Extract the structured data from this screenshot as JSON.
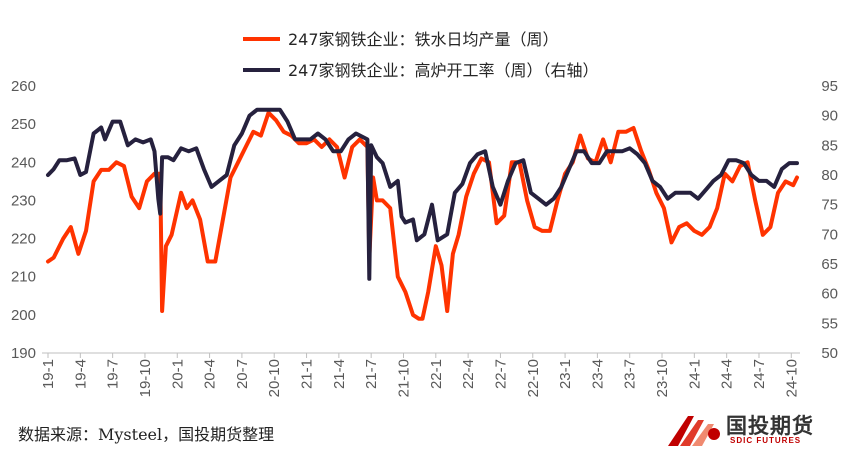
{
  "chart_data": {
    "type": "line",
    "title": "",
    "categories": [
      "19-1",
      "19-4",
      "19-7",
      "19-10",
      "20-1",
      "20-4",
      "20-7",
      "20-10",
      "21-1",
      "21-4",
      "21-7",
      "21-10",
      "22-1",
      "22-4",
      "22-7",
      "22-10",
      "23-1",
      "23-4",
      "23-7",
      "23-10",
      "24-1",
      "24-4",
      "24-7",
      "24-10"
    ],
    "y_left": {
      "min": 190,
      "max": 260,
      "step": 10,
      "ticks": [
        "190",
        "200",
        "210",
        "220",
        "230",
        "240",
        "250",
        "260"
      ]
    },
    "y_right": {
      "min": 50,
      "max": 95,
      "step": 5,
      "ticks": [
        "50",
        "55",
        "60",
        "65",
        "70",
        "75",
        "80",
        "85",
        "90",
        "95"
      ]
    },
    "grid": false,
    "legend_position": "top",
    "series": [
      {
        "name": "247家钢铁企业：铁水日均产量（周）",
        "axis": "left",
        "color": "#ff3300",
        "points": [
          [
            0,
            214
          ],
          [
            0.3,
            215
          ],
          [
            0.8,
            220
          ],
          [
            1.2,
            223
          ],
          [
            1.6,
            216
          ],
          [
            2.0,
            222
          ],
          [
            2.4,
            235
          ],
          [
            2.8,
            238
          ],
          [
            3.2,
            238
          ],
          [
            3.6,
            240
          ],
          [
            4.0,
            239
          ],
          [
            4.4,
            231
          ],
          [
            4.8,
            228
          ],
          [
            5.2,
            235
          ],
          [
            5.6,
            237
          ],
          [
            5.9,
            237
          ],
          [
            6.0,
            201
          ],
          [
            6.2,
            218
          ],
          [
            6.5,
            221
          ],
          [
            7.0,
            232
          ],
          [
            7.3,
            228
          ],
          [
            7.6,
            230
          ],
          [
            8.0,
            225
          ],
          [
            8.4,
            214
          ],
          [
            8.8,
            214
          ],
          [
            9.2,
            225
          ],
          [
            9.6,
            236
          ],
          [
            10.0,
            240
          ],
          [
            10.4,
            244
          ],
          [
            10.8,
            248
          ],
          [
            11.2,
            247
          ],
          [
            11.6,
            253
          ],
          [
            12.0,
            251
          ],
          [
            12.4,
            248
          ],
          [
            12.8,
            247
          ],
          [
            13.2,
            245
          ],
          [
            13.6,
            245
          ],
          [
            14.0,
            246
          ],
          [
            14.4,
            244
          ],
          [
            14.8,
            246
          ],
          [
            15.2,
            244
          ],
          [
            15.6,
            236
          ],
          [
            16.0,
            244
          ],
          [
            16.4,
            246
          ],
          [
            16.8,
            244
          ],
          [
            16.9,
            215
          ],
          [
            17.1,
            236
          ],
          [
            17.3,
            230
          ],
          [
            17.6,
            230
          ],
          [
            18.0,
            228
          ],
          [
            18.4,
            210
          ],
          [
            18.8,
            206
          ],
          [
            19.2,
            200
          ],
          [
            19.5,
            199
          ],
          [
            19.7,
            199
          ],
          [
            20.0,
            206
          ],
          [
            20.4,
            218
          ],
          [
            20.7,
            213
          ],
          [
            21.0,
            201
          ],
          [
            21.3,
            216
          ],
          [
            21.6,
            221
          ],
          [
            22.0,
            231
          ],
          [
            22.4,
            237
          ],
          [
            22.8,
            241
          ],
          [
            23.2,
            240
          ],
          [
            23.6,
            224
          ],
          [
            24.0,
            226
          ],
          [
            24.4,
            240
          ],
          [
            24.8,
            240
          ],
          [
            25.2,
            230
          ],
          [
            25.6,
            223
          ],
          [
            26.0,
            222
          ],
          [
            26.4,
            222
          ],
          [
            26.8,
            230
          ],
          [
            27.2,
            237
          ],
          [
            27.6,
            240
          ],
          [
            28.0,
            247
          ],
          [
            28.4,
            241
          ],
          [
            28.8,
            240
          ],
          [
            29.2,
            246
          ],
          [
            29.6,
            240
          ],
          [
            30.0,
            248
          ],
          [
            30.4,
            248
          ],
          [
            30.8,
            249
          ],
          [
            31.2,
            243
          ],
          [
            31.6,
            238
          ],
          [
            32.0,
            232
          ],
          [
            32.4,
            228
          ],
          [
            32.8,
            219
          ],
          [
            33.2,
            223
          ],
          [
            33.6,
            224
          ],
          [
            34.0,
            222
          ],
          [
            34.4,
            221
          ],
          [
            34.8,
            223
          ],
          [
            35.2,
            228
          ],
          [
            35.6,
            237
          ],
          [
            36.0,
            235
          ],
          [
            36.4,
            239
          ],
          [
            36.8,
            240
          ],
          [
            37.2,
            230
          ],
          [
            37.6,
            221
          ],
          [
            38.0,
            223
          ],
          [
            38.4,
            232
          ],
          [
            38.8,
            235
          ],
          [
            39.2,
            234
          ],
          [
            39.4,
            236
          ]
        ]
      },
      {
        "name": "247家钢铁企业：高炉开工率（周）（右轴）",
        "axis": "right",
        "color": "#26213e",
        "points": [
          [
            0,
            80
          ],
          [
            0.3,
            81
          ],
          [
            0.6,
            82.5
          ],
          [
            1.0,
            82.5
          ],
          [
            1.4,
            82.8
          ],
          [
            1.7,
            80
          ],
          [
            2.0,
            80.5
          ],
          [
            2.4,
            87
          ],
          [
            2.8,
            88
          ],
          [
            3.0,
            86
          ],
          [
            3.4,
            89
          ],
          [
            3.8,
            89
          ],
          [
            4.2,
            85
          ],
          [
            4.6,
            86
          ],
          [
            5.0,
            85.5
          ],
          [
            5.4,
            86
          ],
          [
            5.6,
            84
          ],
          [
            5.8,
            76
          ],
          [
            5.9,
            73.5
          ],
          [
            6.0,
            83
          ],
          [
            6.3,
            83
          ],
          [
            6.6,
            82.5
          ],
          [
            7.0,
            84.5
          ],
          [
            7.4,
            84
          ],
          [
            7.8,
            84.5
          ],
          [
            8.2,
            81
          ],
          [
            8.6,
            78
          ],
          [
            9.0,
            79
          ],
          [
            9.4,
            80
          ],
          [
            9.8,
            85
          ],
          [
            10.2,
            87
          ],
          [
            10.6,
            90
          ],
          [
            11.0,
            91
          ],
          [
            11.4,
            91
          ],
          [
            11.8,
            91
          ],
          [
            12.2,
            91
          ],
          [
            12.6,
            89
          ],
          [
            13.0,
            86
          ],
          [
            13.4,
            86
          ],
          [
            13.8,
            86
          ],
          [
            14.2,
            87
          ],
          [
            14.6,
            86
          ],
          [
            15.0,
            84
          ],
          [
            15.4,
            84
          ],
          [
            15.8,
            86
          ],
          [
            16.2,
            87
          ],
          [
            16.8,
            86
          ],
          [
            16.9,
            62.5
          ],
          [
            17.0,
            85
          ],
          [
            17.3,
            83
          ],
          [
            17.6,
            82
          ],
          [
            18.0,
            78
          ],
          [
            18.4,
            79
          ],
          [
            18.6,
            73
          ],
          [
            18.8,
            72
          ],
          [
            19.2,
            72.5
          ],
          [
            19.4,
            69
          ],
          [
            19.8,
            70
          ],
          [
            20.2,
            75
          ],
          [
            20.5,
            69
          ],
          [
            21.0,
            70
          ],
          [
            21.4,
            77
          ],
          [
            21.8,
            78.5
          ],
          [
            22.2,
            82
          ],
          [
            22.6,
            83.5
          ],
          [
            23.0,
            84
          ],
          [
            23.4,
            78
          ],
          [
            23.8,
            75
          ],
          [
            24.2,
            79
          ],
          [
            24.6,
            82
          ],
          [
            25.0,
            82.5
          ],
          [
            25.4,
            77
          ],
          [
            25.8,
            76
          ],
          [
            26.2,
            75
          ],
          [
            26.6,
            76
          ],
          [
            27.0,
            78
          ],
          [
            27.4,
            81
          ],
          [
            27.8,
            84
          ],
          [
            28.2,
            84
          ],
          [
            28.6,
            82
          ],
          [
            29.0,
            82
          ],
          [
            29.4,
            84
          ],
          [
            29.8,
            84
          ],
          [
            30.2,
            84
          ],
          [
            30.6,
            84.5
          ],
          [
            31.0,
            83.5
          ],
          [
            31.4,
            82
          ],
          [
            31.8,
            79
          ],
          [
            32.2,
            78
          ],
          [
            32.6,
            76
          ],
          [
            33.0,
            77
          ],
          [
            33.4,
            77
          ],
          [
            33.8,
            77
          ],
          [
            34.2,
            76
          ],
          [
            34.6,
            77.5
          ],
          [
            35.0,
            79
          ],
          [
            35.4,
            80
          ],
          [
            35.8,
            82.5
          ],
          [
            36.2,
            82.5
          ],
          [
            36.6,
            82
          ],
          [
            37.0,
            80
          ],
          [
            37.4,
            79
          ],
          [
            37.8,
            79
          ],
          [
            38.2,
            78
          ],
          [
            38.6,
            81
          ],
          [
            39.0,
            82
          ],
          [
            39.4,
            82
          ]
        ]
      }
    ]
  },
  "source_text": "数据来源：Mysteel，国投期货整理",
  "logo": {
    "cn": "国投期货",
    "en": "SDIC FUTURES"
  }
}
